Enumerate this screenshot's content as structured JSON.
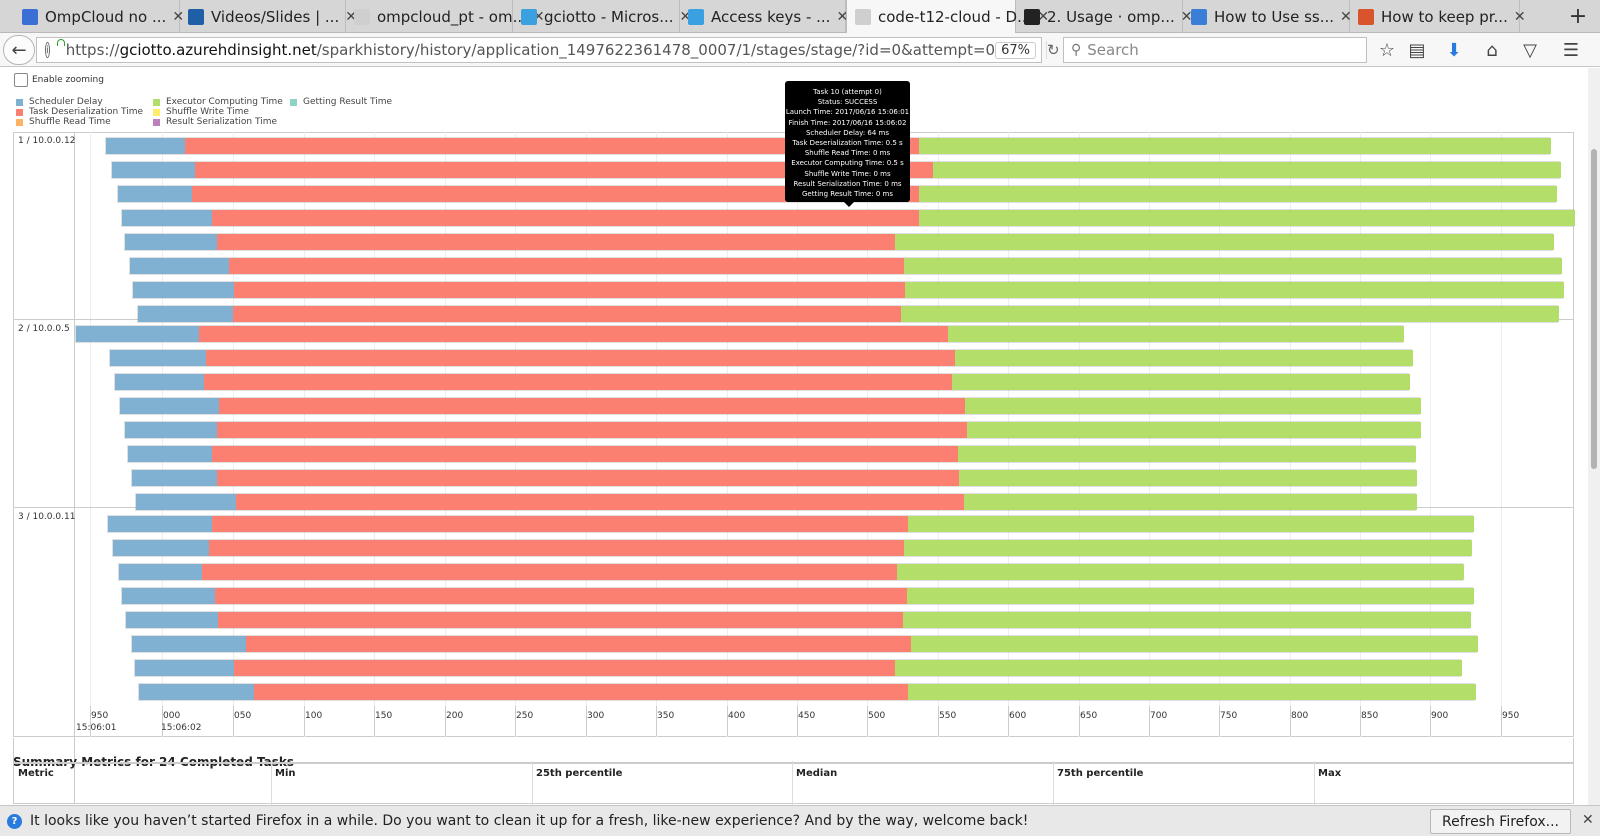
{
  "browser": {
    "tabs": [
      {
        "title": "OmpCloud no ...",
        "favicon_color": "#3c6fd6"
      },
      {
        "title": "Videos/Slides | ...",
        "favicon_color": "#1f5fa8"
      },
      {
        "title": "ompcloud_pt - om...",
        "favicon_color": "#cfcfcf"
      },
      {
        "title": "gciotto - Micros...",
        "favicon_color": "#3aa0e0"
      },
      {
        "title": "Access keys - ...",
        "favicon_color": "#3aa0e0"
      },
      {
        "title": "code-t12-cloud - D...",
        "favicon_color": "#cfcfcf"
      },
      {
        "title": "2. Usage · omp...",
        "favicon_color": "#222222"
      },
      {
        "title": "How to Use ss...",
        "favicon_color": "#3a7ed8"
      },
      {
        "title": "How to keep pr...",
        "favicon_color": "#d9532c"
      }
    ],
    "active_tab": 5,
    "url_prefix": "https://",
    "url_domain": "gciotto.azurehdinsight.net",
    "url_path": "/sparkhistory/history/application_1497622361478_0007/1/stages/stage/?id=0&attempt=0",
    "zoom": "67%",
    "search_placeholder": "Search"
  },
  "page": {
    "enable_zooming_label": "Enable zooming",
    "legend": [
      {
        "label": "Scheduler Delay",
        "color": "#80b1d3"
      },
      {
        "label": "Task Deserialization Time",
        "color": "#fb8072"
      },
      {
        "label": "Shuffle Read Time",
        "color": "#fdb462"
      },
      {
        "label": "Executor Computing Time",
        "color": "#b3de69"
      },
      {
        "label": "Shuffle Write Time",
        "color": "#ffed6f"
      },
      {
        "label": "Result Serialization Time",
        "color": "#bc80bd"
      },
      {
        "label": "Getting Result Time",
        "color": "#8dd3c7"
      }
    ],
    "lanes": [
      "1 / 10.0.0.12",
      "2 / 10.0.0.5",
      "3 / 10.0.0.11"
    ],
    "axis_ticks": [
      "950",
      "000",
      "050",
      "100",
      "150",
      "200",
      "250",
      "300",
      "350",
      "400",
      "450",
      "500",
      "550",
      "600",
      "650",
      "700",
      "750",
      "800",
      "850",
      "900",
      "950"
    ],
    "axis_dates": [
      "15:06:01",
      "15:06:02"
    ],
    "tooltip": [
      "Task 10 (attempt 0)",
      "Status: SUCCESS",
      "Launch Time: 2017/06/16 15:06:01",
      "Finish Time: 2017/06/16 15:06:02",
      "Scheduler Delay: 64 ms",
      "Task Deserialization Time: 0.5 s",
      "Shuffle Read Time: 0 ms",
      "Executor Computing Time: 0.5 s",
      "Shuffle Write Time: 0 ms",
      "Result Serialization Time: 0 ms",
      "Getting Result Time: 0 ms"
    ],
    "summary_title": "Summary Metrics for 24 Completed Tasks",
    "metrics_headers": [
      "Metric",
      "Min",
      "25th percentile",
      "Median",
      "75th percentile",
      "Max"
    ]
  },
  "notification": {
    "text": "It looks like you haven’t started Firefox in a while. Do you want to clean it up for a fresh, like-new experience? And by the way, welcome back!",
    "button": "Refresh Firefox..."
  }
}
